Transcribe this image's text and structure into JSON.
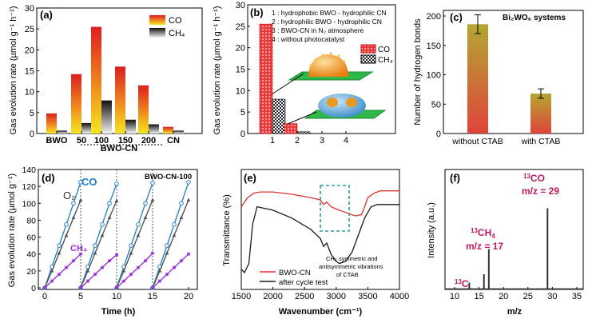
{
  "chart_data": [
    {
      "panel": "(a)",
      "type": "bar",
      "ylabel": "Gas evolution rate (µmol g⁻¹ h⁻¹)",
      "ylim": [
        0,
        30
      ],
      "yticks": [
        "0",
        "5",
        "10",
        "15",
        "20",
        "25",
        "30"
      ],
      "categories": [
        "BWO",
        "50",
        "100",
        "150",
        "200",
        "CN"
      ],
      "group_label": "BWO-CN",
      "series": [
        {
          "name": "CO",
          "values": [
            4.8,
            14.2,
            25.5,
            16.0,
            11.5,
            1.6
          ]
        },
        {
          "name": "CH₄",
          "values": [
            0.7,
            2.5,
            7.9,
            3.3,
            2.2,
            0.7
          ]
        }
      ],
      "legend": [
        "CO",
        "CH₄"
      ]
    },
    {
      "panel": "(b)",
      "type": "bar",
      "ylabel": "Gas evolution rate (µmol g⁻¹ h⁻¹)",
      "ylim": [
        0,
        30
      ],
      "yticks": [
        "0",
        "5",
        "10",
        "15",
        "20",
        "25",
        "30"
      ],
      "categories": [
        "1",
        "2",
        "3",
        "4"
      ],
      "series": [
        {
          "name": "CO",
          "values": [
            25.5,
            2.3,
            0,
            0
          ]
        },
        {
          "name": "CH₄",
          "values": [
            8.0,
            0.4,
            0,
            0
          ]
        }
      ],
      "legend": [
        "CO",
        "CH₄"
      ],
      "notes": [
        "1 : hydrophobic BWO - hydrophilic CN",
        "2 : hydrophilic BWO - hydrophilic CN",
        "3 : BWO-CN in N₂ atmosphere",
        "4 : without photocatalyst"
      ]
    },
    {
      "panel": "(c)",
      "type": "bar",
      "ylabel": "Number of hydrogen bonds",
      "ylim": [
        0,
        200
      ],
      "yticks": [
        "0",
        "50",
        "100",
        "150",
        "200"
      ],
      "categories": [
        "without CTAB",
        "with CTAB"
      ],
      "values": [
        186,
        68
      ],
      "errors": [
        16,
        8
      ],
      "annotation": "Bi₂WO₆ systems"
    },
    {
      "panel": "(d)",
      "type": "line",
      "xlabel": "Time (h)",
      "ylabel": "Gas evolution rate (µmol g⁻¹)",
      "xlim": [
        0,
        20
      ],
      "ylim": [
        0,
        140
      ],
      "xticks": [
        "0",
        "5",
        "10",
        "15",
        "20"
      ],
      "yticks": [
        "0",
        "20",
        "40",
        "60",
        "80",
        "100",
        "120",
        "140"
      ],
      "annotation": "BWO-CN-100",
      "series": [
        {
          "name": "CO",
          "x": [
            0,
            1,
            2,
            3,
            4,
            5,
            5,
            6,
            7,
            8,
            9,
            10,
            10,
            11,
            12,
            13,
            14,
            15,
            15,
            16,
            17,
            18,
            19,
            20
          ],
          "y": [
            0,
            25,
            50,
            75,
            100,
            125,
            0,
            25,
            50,
            75,
            100,
            123,
            0,
            25,
            50,
            75,
            100,
            124,
            0,
            25,
            50,
            75,
            100,
            125
          ]
        },
        {
          "name": "O₂",
          "x": [
            0,
            1,
            2,
            3,
            4,
            5,
            5,
            6,
            7,
            8,
            9,
            10,
            10,
            11,
            12,
            13,
            14,
            15,
            15,
            16,
            17,
            18,
            19,
            20
          ],
          "y": [
            0,
            20,
            41,
            62,
            83,
            104,
            0,
            20,
            41,
            62,
            83,
            103,
            0,
            20,
            41,
            62,
            83,
            104,
            0,
            20,
            41,
            62,
            83,
            104
          ]
        },
        {
          "name": "CH₄",
          "x": [
            0,
            1,
            2,
            3,
            4,
            5,
            5,
            6,
            7,
            8,
            9,
            10,
            10,
            11,
            12,
            13,
            14,
            15,
            15,
            16,
            17,
            18,
            19,
            20
          ],
          "y": [
            0,
            8,
            16,
            24,
            32,
            40,
            0,
            8,
            16,
            24,
            32,
            39,
            0,
            8,
            16,
            24,
            32,
            41,
            0,
            8,
            16,
            24,
            32,
            40
          ]
        }
      ]
    },
    {
      "panel": "(e)",
      "type": "line",
      "xlabel": "Wavenumber (cm⁻¹)",
      "ylabel": "Transmittance (%)",
      "xlim": [
        1500,
        4000
      ],
      "xticks": [
        "1500",
        "2000",
        "2500",
        "3000",
        "3500",
        "4000"
      ],
      "legend": [
        "BWO-CN",
        "after cycle test"
      ],
      "annotation": "CH₂ symmetric and antisymmetric vibrations of CTAB",
      "series": [
        {
          "name": "BWO-CN",
          "x": [
            1500,
            1600,
            1700,
            1800,
            2000,
            2300,
            2600,
            2750,
            2800,
            2850,
            2920,
            3000,
            3100,
            3200,
            3300,
            3400,
            3450,
            3500,
            3600,
            3700,
            4000
          ],
          "y": [
            70,
            78,
            82,
            83,
            83,
            81,
            78,
            76,
            72,
            74,
            70,
            68,
            66,
            64,
            62,
            63,
            70,
            78,
            82,
            84,
            84
          ]
        },
        {
          "name": "after cycle test",
          "x": [
            1500,
            1550,
            1620,
            1680,
            1750,
            2000,
            2300,
            2600,
            2750,
            2800,
            2850,
            2920,
            3000,
            3050,
            3150,
            3250,
            3350,
            3450,
            3550,
            3650,
            3800,
            4000
          ],
          "y": [
            15,
            12,
            20,
            55,
            70,
            67,
            60,
            50,
            42,
            35,
            38,
            28,
            22,
            20,
            22,
            30,
            45,
            60,
            70,
            72,
            72,
            72
          ]
        }
      ]
    },
    {
      "panel": "(f)",
      "type": "bar",
      "xlabel": "m/z",
      "ylabel": "Intensity (a.u.)",
      "xlim": [
        10,
        35
      ],
      "xticks": [
        "10",
        "15",
        "20",
        "25",
        "30",
        "35"
      ],
      "x": [
        13,
        16,
        17,
        29
      ],
      "values": [
        5,
        12,
        33,
        67
      ],
      "labels": {
        "c": "C",
        "ch4": "CH",
        "ch4_mz": "m/z = 17",
        "co": "CO",
        "co_mz": "m/z = 29",
        "iso": "13",
        "sub4": "4"
      }
    }
  ],
  "colors": {
    "co_top": "#dc1e1e",
    "co_bottom": "#f5e61e",
    "ch4_top": "#111111",
    "ch4_bottom": "#f2f2f2",
    "hb_top": "#b4a632",
    "hb_bottom": "#e0443a",
    "line_co": "#2a86c8",
    "line_o2": "#555555",
    "line_ch4": "#9b30d9",
    "ir_red": "#e53030",
    "ir_black": "#1a1a1a",
    "ms": "#333333",
    "label_blue": "#1f7ad1",
    "label_purple": "#9b30d9",
    "label_magenta": "#c0185a"
  }
}
